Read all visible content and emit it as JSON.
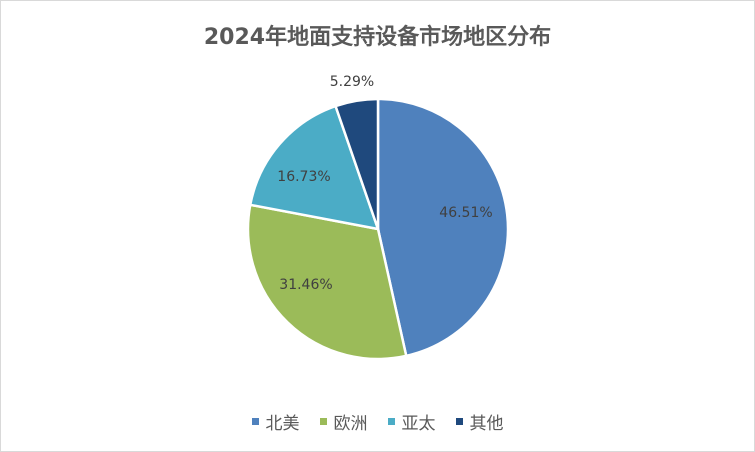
{
  "chart_data": {
    "type": "pie",
    "title": "2024年地面支持设备市场地区分布",
    "categories": [
      "北美",
      "欧洲",
      "亚太",
      "其他"
    ],
    "values": [
      46.51,
      31.46,
      16.73,
      5.29
    ],
    "data_labels": [
      "46.51%",
      "31.46%",
      "16.73%",
      "5.29%"
    ],
    "colors": [
      "#4f81bd",
      "#9bbb59",
      "#4bacc6",
      "#1f497d"
    ],
    "legend_position": "bottom",
    "start_angle": "12 o'clock",
    "direction": "clockwise"
  }
}
